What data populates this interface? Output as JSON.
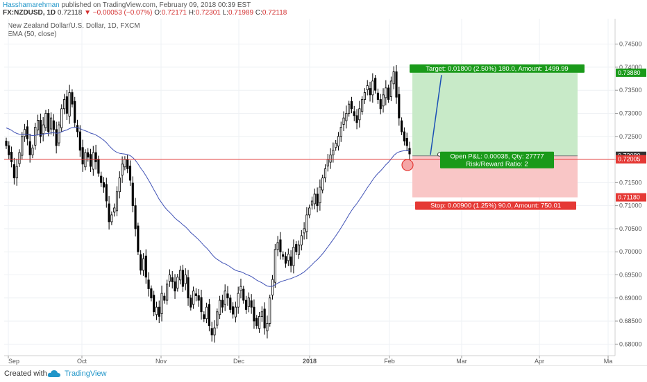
{
  "header": {
    "author": "Hasshamarehman",
    "published": " published on TradingView.com, February 09, 2018 00:39 EST",
    "symbol": "FX:NZDUSD, 1D",
    "last": "0.72118",
    "change": "−0.00053 (−0.07%)",
    "o_label": "O:",
    "o": "0.72171",
    "h_label": "H:",
    "h": "0.72301",
    "l_label": "L:",
    "l": "0.71989",
    "c_label": "C:",
    "c": "0.72118"
  },
  "footer": {
    "created": "Created with",
    "brand": "TradingView"
  },
  "colors": {
    "up": "#ffffff",
    "down": "#000000",
    "ema": "#3f51b5",
    "hline": "#e53935",
    "target_fill": "#c8eac8",
    "stop_fill": "#f9c6c6",
    "target_label": "#1a9a1a",
    "stop_label": "#e53935"
  },
  "chart_data": {
    "type": "candlestick",
    "title": "New Zealand Dollar/U.S. Dollar, 1D, FXCM",
    "indicator": "EMA (50, close)",
    "ylim": [
      0.6775,
      0.7505
    ],
    "y_ticks": [
      "0.74500",
      "0.74000",
      "0.73500",
      "0.73000",
      "0.72500",
      "0.72000",
      "0.71500",
      "0.71000",
      "0.70500",
      "0.70000",
      "0.69500",
      "0.69000",
      "0.68500",
      "0.68000"
    ],
    "x_ticks": [
      "Sep",
      "Oct",
      "Nov",
      "Dec",
      "2018",
      "Feb",
      "Mar",
      "Apr",
      "Ma"
    ],
    "price_labels": [
      {
        "value": 0.7388,
        "text": "0.73880",
        "color": "#1a9a1a"
      },
      {
        "value": 0.7208,
        "text": "0.72080",
        "color": "#333333"
      },
      {
        "value": 0.72005,
        "text": "0.72005",
        "color": "#e53935"
      },
      {
        "value": 0.7118,
        "text": "0.71180",
        "color": "#e53935"
      }
    ],
    "horizontal_line": 0.72005,
    "position": {
      "entry": 0.7208,
      "target": 0.7388,
      "stop": 0.7118,
      "target_text": "Target: 0.01800 (2.50%) 180.0, Amount: 1499.99",
      "open_text": "Open P&L: 0.00038, Qty: 27777",
      "rr_text": "Risk/Reward Ratio: 2",
      "stop_text": "Stop: 0.00900 (1.25%) 90.0, Amount: 750.01"
    },
    "candles_close": [
      0.723,
      0.721,
      0.7195,
      0.716,
      0.7185,
      0.7215,
      0.725,
      0.7265,
      0.7245,
      0.721,
      0.7225,
      0.727,
      0.7285,
      0.725,
      0.7275,
      0.73,
      0.726,
      0.729,
      0.7265,
      0.723,
      0.7275,
      0.731,
      0.733,
      0.73,
      0.7345,
      0.732,
      0.728,
      0.726,
      0.722,
      0.719,
      0.7215,
      0.7205,
      0.7185,
      0.7215,
      0.7195,
      0.717,
      0.715,
      0.714,
      0.711,
      0.7065,
      0.708,
      0.7095,
      0.713,
      0.716,
      0.719,
      0.72,
      0.718,
      0.7155,
      0.71,
      0.705,
      0.7,
      0.696,
      0.6985,
      0.6945,
      0.692,
      0.69,
      0.687,
      0.688,
      0.686,
      0.691,
      0.6895,
      0.693,
      0.695,
      0.6935,
      0.6915,
      0.6945,
      0.696,
      0.6925,
      0.695,
      0.69,
      0.688,
      0.6915,
      0.6905,
      0.6895,
      0.687,
      0.6855,
      0.688,
      0.684,
      0.682,
      0.6835,
      0.687,
      0.6895,
      0.688,
      0.6915,
      0.69,
      0.6875,
      0.6865,
      0.688,
      0.691,
      0.6925,
      0.6895,
      0.6875,
      0.69,
      0.688,
      0.685,
      0.684,
      0.686,
      0.687,
      0.6835,
      0.6845,
      0.69,
      0.694,
      0.7005,
      0.702,
      0.7,
      0.699,
      0.6975,
      0.6995,
      0.697,
      0.701,
      0.7,
      0.7015,
      0.7035,
      0.705,
      0.708,
      0.7095,
      0.711,
      0.7125,
      0.71,
      0.714,
      0.716,
      0.718,
      0.72,
      0.721,
      0.722,
      0.7235,
      0.725,
      0.727,
      0.729,
      0.73,
      0.732,
      0.731,
      0.7295,
      0.728,
      0.731,
      0.733,
      0.7345,
      0.736,
      0.734,
      0.737,
      0.735,
      0.733,
      0.731,
      0.734,
      0.7355,
      0.733,
      0.737,
      0.739,
      0.7335,
      0.729,
      0.726,
      0.724,
      0.723,
      0.7212
    ]
  }
}
